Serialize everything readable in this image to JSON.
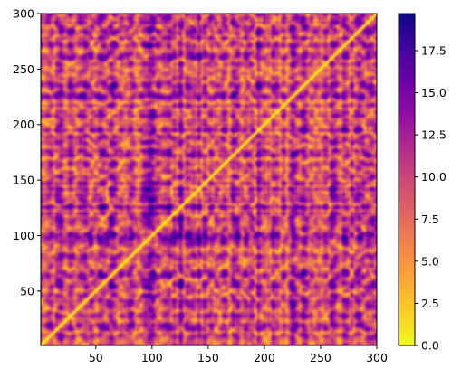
{
  "chart_data": {
    "type": "heatmap",
    "title": "",
    "xlabel": "",
    "ylabel": "",
    "colormap": "plasma_r",
    "color_low": "#f0f921",
    "color_high": "#0d0887",
    "xlim": [
      1,
      300
    ],
    "ylim": [
      1,
      300
    ],
    "x_ticks": [
      50,
      100,
      150,
      200,
      250,
      300
    ],
    "y_ticks": [
      50,
      100,
      150,
      200,
      250,
      300
    ],
    "diagonal_value": 0,
    "matrix_description": "symmetric pairwise-distance matrix, zero on the diagonal",
    "colorbar": {
      "min": 0.0,
      "max": 19.7,
      "ticks": [
        "0.0",
        "2.5",
        "5.0",
        "7.5",
        "10.0",
        "12.5",
        "15.0",
        "17.5"
      ],
      "tick_values": [
        0.0,
        2.5,
        5.0,
        7.5,
        10.0,
        12.5,
        15.0,
        17.5
      ]
    }
  }
}
